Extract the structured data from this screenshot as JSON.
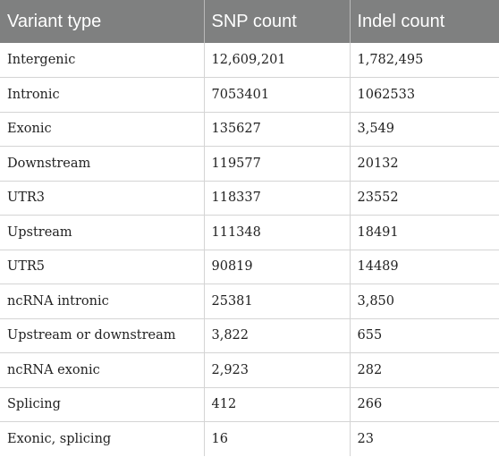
{
  "table": {
    "headers": [
      "Variant type",
      "SNP count",
      "Indel count"
    ],
    "rows": [
      [
        "Intergenic",
        "12,609,201",
        "1,782,495"
      ],
      [
        "Intronic",
        "7053401",
        "1062533"
      ],
      [
        "Exonic",
        "135627",
        "3,549"
      ],
      [
        "Downstream",
        "119577",
        "20132"
      ],
      [
        "UTR3",
        "118337",
        "23552"
      ],
      [
        "Upstream",
        "111348",
        "18491"
      ],
      [
        "UTR5",
        "90819",
        "14489"
      ],
      [
        "ncRNA intronic",
        "25381",
        "3,850"
      ],
      [
        "Upstream or downstream",
        "3,822",
        "655"
      ],
      [
        "ncRNA exonic",
        "2,923",
        "282"
      ],
      [
        "Splicing",
        "412",
        "266"
      ],
      [
        "Exonic, splicing",
        "16",
        "23"
      ]
    ]
  },
  "colors": {
    "header_background": "#7f8080",
    "header_text": "#ffffff",
    "grid_line": "#d4d4d4"
  }
}
